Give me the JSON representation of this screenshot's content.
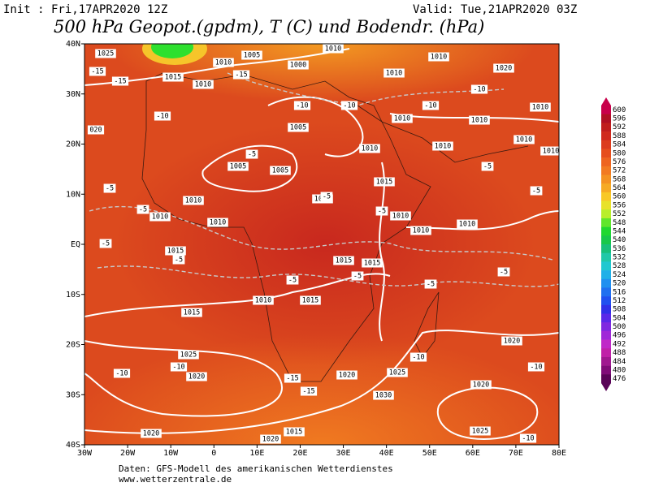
{
  "header": {
    "init": "Init : Fri,17APR2020 12Z",
    "valid": "Valid: Tue,21APR2020 03Z",
    "title": "500 hPa Geopot.(gpdm), T (C) und Bodendr. (hPa)"
  },
  "map": {
    "lat_labels": [
      "40N",
      "30N",
      "20N",
      "10N",
      "EQ",
      "10S",
      "20S",
      "30S",
      "40S"
    ],
    "lon_labels": [
      "30W",
      "20W",
      "10W",
      "0",
      "10E",
      "20E",
      "30E",
      "40E",
      "50E",
      "60E",
      "70E",
      "80E"
    ],
    "isobar_labels": [
      "1025",
      "1010",
      "1005",
      "1000",
      "1010",
      "1015",
      "1010",
      "1010",
      "1010",
      "1020",
      "1010",
      "1010",
      "1010",
      "1005",
      "1010",
      "1010",
      "1010",
      "1010",
      "1005",
      "1005",
      "1015",
      "1010",
      "1010",
      "1010",
      "1010",
      "1010",
      "1010",
      "1010",
      "1015",
      "1015",
      "1010",
      "1015",
      "1015",
      "1015",
      "1020",
      "1025",
      "1020",
      "1020",
      "1025",
      "1020",
      "1030",
      "1025",
      "1020",
      "1015",
      "1020",
      "020"
    ],
    "temperature_labels": [
      "-15",
      "-15",
      "-15",
      "-10",
      "-10",
      "-10",
      "-10",
      "-5",
      "-5",
      "-5",
      "-5",
      "-5",
      "-5",
      "-5",
      "-5",
      "-5",
      "-5",
      "-5",
      "-5",
      "-5",
      "-10",
      "-10",
      "-10",
      "-10",
      "-15",
      "-15",
      "-10",
      "-10"
    ]
  },
  "colorbar": {
    "labels": [
      600,
      596,
      592,
      588,
      584,
      580,
      576,
      572,
      568,
      564,
      560,
      556,
      552,
      548,
      544,
      540,
      536,
      532,
      528,
      524,
      520,
      516,
      512,
      508,
      504,
      500,
      496,
      492,
      488,
      484,
      480,
      476
    ]
  },
  "footer": {
    "source": "Daten: GFS-Modell des amerikanischen Wetterdienstes",
    "url": "www.wetterzentrale.de"
  }
}
